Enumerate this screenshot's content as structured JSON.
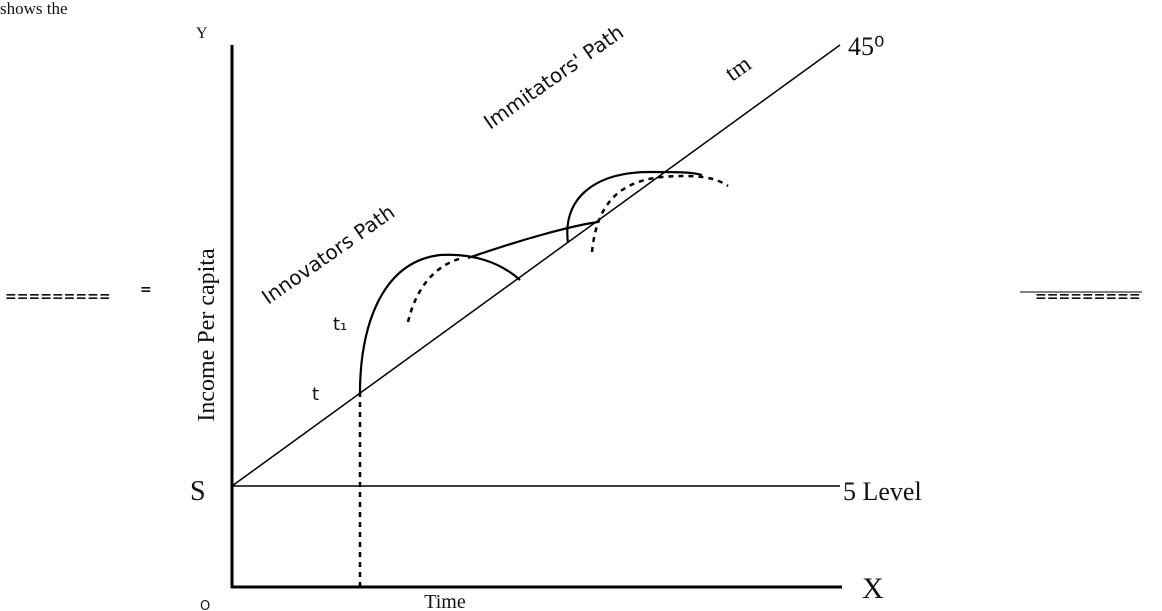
{
  "header_fragment": "shows the",
  "axes": {
    "y": "Y",
    "x": "X",
    "origin": "O",
    "y_title": "Income Per capita",
    "x_title": "Time"
  },
  "labels": {
    "angle": "45⁰",
    "tm": "tm",
    "immitators": "Immitators' Path",
    "innovators": "Innovators Path",
    "t1": "t₁",
    "t": "t",
    "s": "S",
    "level": "5 Level"
  },
  "separators": {
    "left_mark": "=",
    "left": "=========",
    "right": "========="
  }
}
